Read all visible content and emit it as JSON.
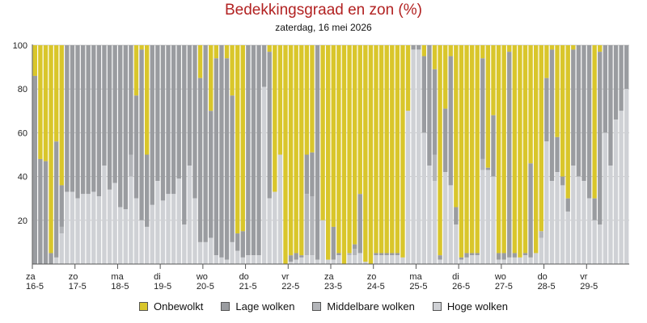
{
  "chart_data": {
    "type": "bar",
    "stacked": true,
    "title": "Bedekkingsgraad en zon (%)",
    "subtitle": "zaterdag, 16 mei 2026",
    "ylim": [
      0,
      100
    ],
    "yticks": [
      20,
      40,
      60,
      80,
      100
    ],
    "grid": true,
    "day_labels": [
      {
        "day": "za",
        "date": "16-5"
      },
      {
        "day": "zo",
        "date": "17-5"
      },
      {
        "day": "ma",
        "date": "18-5"
      },
      {
        "day": "di",
        "date": "19-5"
      },
      {
        "day": "wo",
        "date": "20-5"
      },
      {
        "day": "do",
        "date": "21-5"
      },
      {
        "day": "vr",
        "date": "22-5"
      },
      {
        "day": "za",
        "date": "23-5"
      },
      {
        "day": "zo",
        "date": "24-5"
      },
      {
        "day": "ma",
        "date": "25-5"
      },
      {
        "day": "di",
        "date": "26-5"
      },
      {
        "day": "wo",
        "date": "27-5"
      },
      {
        "day": "do",
        "date": "28-5"
      },
      {
        "day": "vr",
        "date": "29-5"
      }
    ],
    "bars_per_day": 8,
    "legend_position": "bottom",
    "series": [
      {
        "name": "Onbewolkt",
        "key": "sun",
        "color": "#d9c62b"
      },
      {
        "name": "Lage wolken",
        "key": "low",
        "color": "#9a9ca0"
      },
      {
        "name": "Middelbare wolken",
        "key": "mid",
        "color": "#b3b5b9"
      },
      {
        "name": "Hoge wolken",
        "key": "high",
        "color": "#cfd1d5"
      }
    ],
    "cover": [
      86,
      48,
      47,
      5,
      56,
      36,
      100,
      100,
      100,
      100,
      100,
      100,
      100,
      100,
      100,
      100,
      100,
      100,
      100,
      77,
      98,
      50,
      100,
      100,
      100,
      100,
      100,
      100,
      100,
      100,
      100,
      85,
      100,
      70,
      94,
      100,
      94,
      77,
      14,
      15,
      100,
      100,
      100,
      100,
      97,
      33,
      50,
      0,
      4,
      5,
      4,
      50,
      51,
      100,
      20,
      2,
      17,
      5,
      0,
      5,
      9,
      32,
      1,
      0,
      5,
      5,
      5,
      5,
      5,
      3,
      70,
      100,
      100,
      95,
      100,
      89,
      4,
      71,
      95,
      26,
      3,
      5,
      5,
      5,
      94,
      44,
      68,
      5,
      5,
      97,
      5,
      3,
      5,
      46,
      5,
      15,
      85,
      98,
      58,
      40,
      30,
      98,
      100,
      100,
      100,
      30,
      97,
      100,
      100,
      100,
      100,
      100
    ],
    "high": [
      0,
      0,
      0,
      0,
      3,
      14,
      33,
      33,
      30,
      32,
      32,
      33,
      31,
      45,
      34,
      37,
      26,
      25,
      40,
      30,
      20,
      17,
      27,
      38,
      29,
      32,
      32,
      39,
      18,
      45,
      30,
      10,
      10,
      12,
      4,
      3,
      2,
      10,
      6,
      3,
      4,
      4,
      4,
      81,
      30,
      33,
      50,
      0,
      1,
      2,
      3,
      4,
      4,
      2,
      20,
      2,
      2,
      4,
      0,
      4,
      4,
      5,
      1,
      0,
      4,
      4,
      4,
      4,
      4,
      3,
      70,
      98,
      98,
      60,
      45,
      38,
      2,
      42,
      36,
      18,
      2,
      3,
      4,
      4,
      43,
      43,
      40,
      2,
      2,
      3,
      3,
      3,
      4,
      3,
      5,
      12,
      56,
      38,
      42,
      36,
      24,
      45,
      40,
      38,
      30,
      20,
      18,
      60,
      45,
      66,
      70,
      80
    ],
    "mid": [
      0,
      0,
      0,
      0,
      0,
      3,
      0,
      0,
      0,
      0,
      0,
      0,
      0,
      0,
      0,
      0,
      0,
      0,
      10,
      0,
      0,
      0,
      0,
      0,
      0,
      0,
      0,
      0,
      0,
      0,
      0,
      0,
      0,
      0,
      0,
      0,
      0,
      0,
      0,
      0,
      0,
      0,
      0,
      0,
      0,
      0,
      0,
      0,
      0,
      0,
      0,
      28,
      27,
      0,
      0,
      0,
      0,
      0,
      0,
      2,
      3,
      0,
      0,
      0,
      0,
      0,
      0,
      0,
      0,
      0,
      0,
      0,
      0,
      0,
      0,
      12,
      0,
      0,
      0,
      0,
      0,
      0,
      0,
      0,
      5,
      0,
      0,
      0,
      0,
      0,
      0,
      0,
      0,
      0,
      0,
      3,
      0,
      0,
      0,
      0,
      0,
      0,
      0,
      0,
      0,
      0,
      0,
      0,
      0,
      0,
      0,
      0
    ]
  },
  "legend": {
    "sun": "Onbewolkt",
    "low": "Lage wolken",
    "mid": "Middelbare wolken",
    "high": "Hoge wolken"
  }
}
